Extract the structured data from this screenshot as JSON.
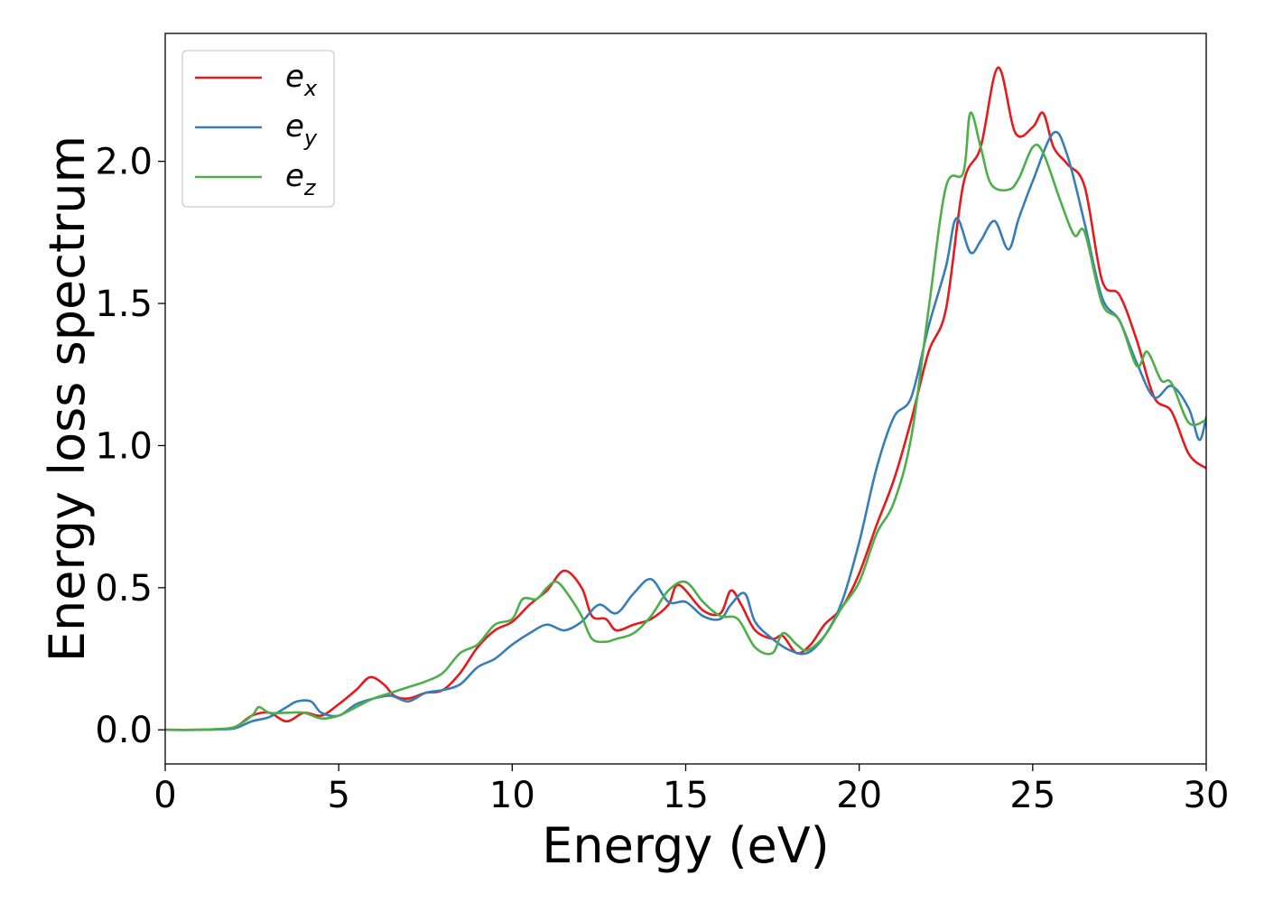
{
  "chart_data": {
    "type": "line",
    "title": "",
    "xlabel": "Energy (eV)",
    "ylabel": "Energy loss spectrum",
    "xlim": [
      0,
      30
    ],
    "ylim": [
      -0.12,
      2.45
    ],
    "xticks": [
      0,
      5,
      10,
      15,
      20,
      25,
      30
    ],
    "xtick_labels": [
      "0",
      "5",
      "10",
      "15",
      "20",
      "25",
      "30"
    ],
    "yticks": [
      0.0,
      0.5,
      1.0,
      1.5,
      2.0
    ],
    "ytick_labels": [
      "0.0",
      "0.5",
      "1.0",
      "1.5",
      "2.0"
    ],
    "grid": false,
    "legend_position": "top-left",
    "series": [
      {
        "name": "e_x",
        "label_base": "e",
        "label_sub": "x",
        "color": "#e41a1c",
        "points": [
          [
            0,
            0
          ],
          [
            1,
            0
          ],
          [
            1.5,
            0.002
          ],
          [
            2,
            0.008
          ],
          [
            2.5,
            0.05
          ],
          [
            3,
            0.06
          ],
          [
            3.5,
            0.03
          ],
          [
            4,
            0.06
          ],
          [
            4.5,
            0.05
          ],
          [
            5,
            0.09
          ],
          [
            5.5,
            0.14
          ],
          [
            5.9,
            0.185
          ],
          [
            6.3,
            0.16
          ],
          [
            6.6,
            0.12
          ],
          [
            7,
            0.11
          ],
          [
            7.5,
            0.13
          ],
          [
            8,
            0.14
          ],
          [
            8.5,
            0.2
          ],
          [
            9,
            0.29
          ],
          [
            9.5,
            0.35
          ],
          [
            10,
            0.38
          ],
          [
            10.5,
            0.44
          ],
          [
            11,
            0.49
          ],
          [
            11.5,
            0.56
          ],
          [
            12,
            0.5
          ],
          [
            12.3,
            0.4
          ],
          [
            12.7,
            0.39
          ],
          [
            13,
            0.35
          ],
          [
            13.5,
            0.37
          ],
          [
            14,
            0.39
          ],
          [
            14.5,
            0.44
          ],
          [
            14.8,
            0.51
          ],
          [
            15.5,
            0.42
          ],
          [
            16,
            0.41
          ],
          [
            16.3,
            0.49
          ],
          [
            16.6,
            0.44
          ],
          [
            17,
            0.35
          ],
          [
            17.5,
            0.32
          ],
          [
            17.8,
            0.33
          ],
          [
            18.2,
            0.27
          ],
          [
            18.6,
            0.3
          ],
          [
            19,
            0.37
          ],
          [
            19.5,
            0.43
          ],
          [
            20,
            0.55
          ],
          [
            20.5,
            0.72
          ],
          [
            21,
            0.88
          ],
          [
            21.5,
            1.09
          ],
          [
            22,
            1.33
          ],
          [
            22.5,
            1.48
          ],
          [
            23,
            1.92
          ],
          [
            23.5,
            2.05
          ],
          [
            24,
            2.33
          ],
          [
            24.5,
            2.1
          ],
          [
            25,
            2.12
          ],
          [
            25.3,
            2.17
          ],
          [
            25.6,
            2.05
          ],
          [
            26,
            1.99
          ],
          [
            26.5,
            1.91
          ],
          [
            27,
            1.58
          ],
          [
            27.5,
            1.53
          ],
          [
            28,
            1.37
          ],
          [
            28.5,
            1.17
          ],
          [
            29,
            1.12
          ],
          [
            29.5,
            0.97
          ],
          [
            30,
            0.92
          ]
        ]
      },
      {
        "name": "e_y",
        "label_base": "e",
        "label_sub": "y",
        "color": "#377eb8",
        "points": [
          [
            0,
            0
          ],
          [
            1,
            0
          ],
          [
            1.5,
            0.002
          ],
          [
            2,
            0.005
          ],
          [
            2.5,
            0.03
          ],
          [
            3,
            0.045
          ],
          [
            3.5,
            0.08
          ],
          [
            3.8,
            0.1
          ],
          [
            4.2,
            0.1
          ],
          [
            4.5,
            0.06
          ],
          [
            5,
            0.05
          ],
          [
            5.5,
            0.09
          ],
          [
            6,
            0.11
          ],
          [
            6.5,
            0.12
          ],
          [
            7,
            0.1
          ],
          [
            7.5,
            0.13
          ],
          [
            8,
            0.14
          ],
          [
            8.5,
            0.16
          ],
          [
            9,
            0.22
          ],
          [
            9.5,
            0.25
          ],
          [
            10,
            0.3
          ],
          [
            10.5,
            0.34
          ],
          [
            11,
            0.37
          ],
          [
            11.5,
            0.35
          ],
          [
            12,
            0.38
          ],
          [
            12.5,
            0.44
          ],
          [
            13,
            0.41
          ],
          [
            13.5,
            0.48
          ],
          [
            14,
            0.53
          ],
          [
            14.5,
            0.45
          ],
          [
            15,
            0.45
          ],
          [
            15.5,
            0.4
          ],
          [
            16,
            0.39
          ],
          [
            16.3,
            0.44
          ],
          [
            16.7,
            0.48
          ],
          [
            17,
            0.38
          ],
          [
            17.5,
            0.32
          ],
          [
            18,
            0.28
          ],
          [
            18.5,
            0.27
          ],
          [
            19,
            0.33
          ],
          [
            19.5,
            0.45
          ],
          [
            20,
            0.66
          ],
          [
            20.5,
            0.92
          ],
          [
            21,
            1.1
          ],
          [
            21.5,
            1.17
          ],
          [
            22,
            1.42
          ],
          [
            22.5,
            1.63
          ],
          [
            22.8,
            1.8
          ],
          [
            23.2,
            1.68
          ],
          [
            23.5,
            1.72
          ],
          [
            23.9,
            1.79
          ],
          [
            24.3,
            1.69
          ],
          [
            24.6,
            1.8
          ],
          [
            25,
            1.93
          ],
          [
            25.6,
            2.1
          ],
          [
            26,
            2.02
          ],
          [
            26.5,
            1.78
          ],
          [
            27,
            1.52
          ],
          [
            27.5,
            1.44
          ],
          [
            28,
            1.29
          ],
          [
            28.5,
            1.17
          ],
          [
            29,
            1.21
          ],
          [
            29.5,
            1.13
          ],
          [
            29.8,
            1.02
          ],
          [
            30,
            1.1
          ]
        ]
      },
      {
        "name": "e_z",
        "label_base": "e",
        "label_sub": "z",
        "color": "#4daf4a",
        "points": [
          [
            0,
            0
          ],
          [
            1,
            0
          ],
          [
            1.5,
            0.003
          ],
          [
            2,
            0.01
          ],
          [
            2.5,
            0.05
          ],
          [
            2.7,
            0.08
          ],
          [
            3,
            0.06
          ],
          [
            3.5,
            0.06
          ],
          [
            4,
            0.06
          ],
          [
            4.5,
            0.04
          ],
          [
            5,
            0.05
          ],
          [
            5.5,
            0.08
          ],
          [
            6,
            0.11
          ],
          [
            6.5,
            0.13
          ],
          [
            7,
            0.15
          ],
          [
            7.5,
            0.17
          ],
          [
            8,
            0.2
          ],
          [
            8.5,
            0.27
          ],
          [
            9,
            0.3
          ],
          [
            9.5,
            0.37
          ],
          [
            10,
            0.39
          ],
          [
            10.3,
            0.46
          ],
          [
            10.7,
            0.46
          ],
          [
            11,
            0.5
          ],
          [
            11.3,
            0.52
          ],
          [
            11.7,
            0.46
          ],
          [
            12,
            0.4
          ],
          [
            12.3,
            0.32
          ],
          [
            12.7,
            0.31
          ],
          [
            13,
            0.32
          ],
          [
            13.5,
            0.34
          ],
          [
            14,
            0.4
          ],
          [
            14.5,
            0.49
          ],
          [
            15,
            0.52
          ],
          [
            15.5,
            0.45
          ],
          [
            16,
            0.4
          ],
          [
            16.5,
            0.39
          ],
          [
            17,
            0.29
          ],
          [
            17.5,
            0.27
          ],
          [
            17.8,
            0.34
          ],
          [
            18.2,
            0.3
          ],
          [
            18.5,
            0.28
          ],
          [
            19,
            0.33
          ],
          [
            19.5,
            0.43
          ],
          [
            20,
            0.52
          ],
          [
            20.5,
            0.69
          ],
          [
            21,
            0.8
          ],
          [
            21.5,
            1.03
          ],
          [
            22,
            1.48
          ],
          [
            22.5,
            1.91
          ],
          [
            23,
            1.96
          ],
          [
            23.2,
            2.17
          ],
          [
            23.5,
            2.05
          ],
          [
            23.8,
            1.92
          ],
          [
            24.3,
            1.9
          ],
          [
            24.6,
            1.94
          ],
          [
            25,
            2.05
          ],
          [
            25.3,
            2.03
          ],
          [
            25.8,
            1.86
          ],
          [
            26.2,
            1.74
          ],
          [
            26.5,
            1.75
          ],
          [
            27,
            1.5
          ],
          [
            27.5,
            1.44
          ],
          [
            28,
            1.28
          ],
          [
            28.3,
            1.33
          ],
          [
            28.7,
            1.23
          ],
          [
            29,
            1.22
          ],
          [
            29.5,
            1.08
          ],
          [
            30,
            1.09
          ]
        ]
      }
    ]
  }
}
